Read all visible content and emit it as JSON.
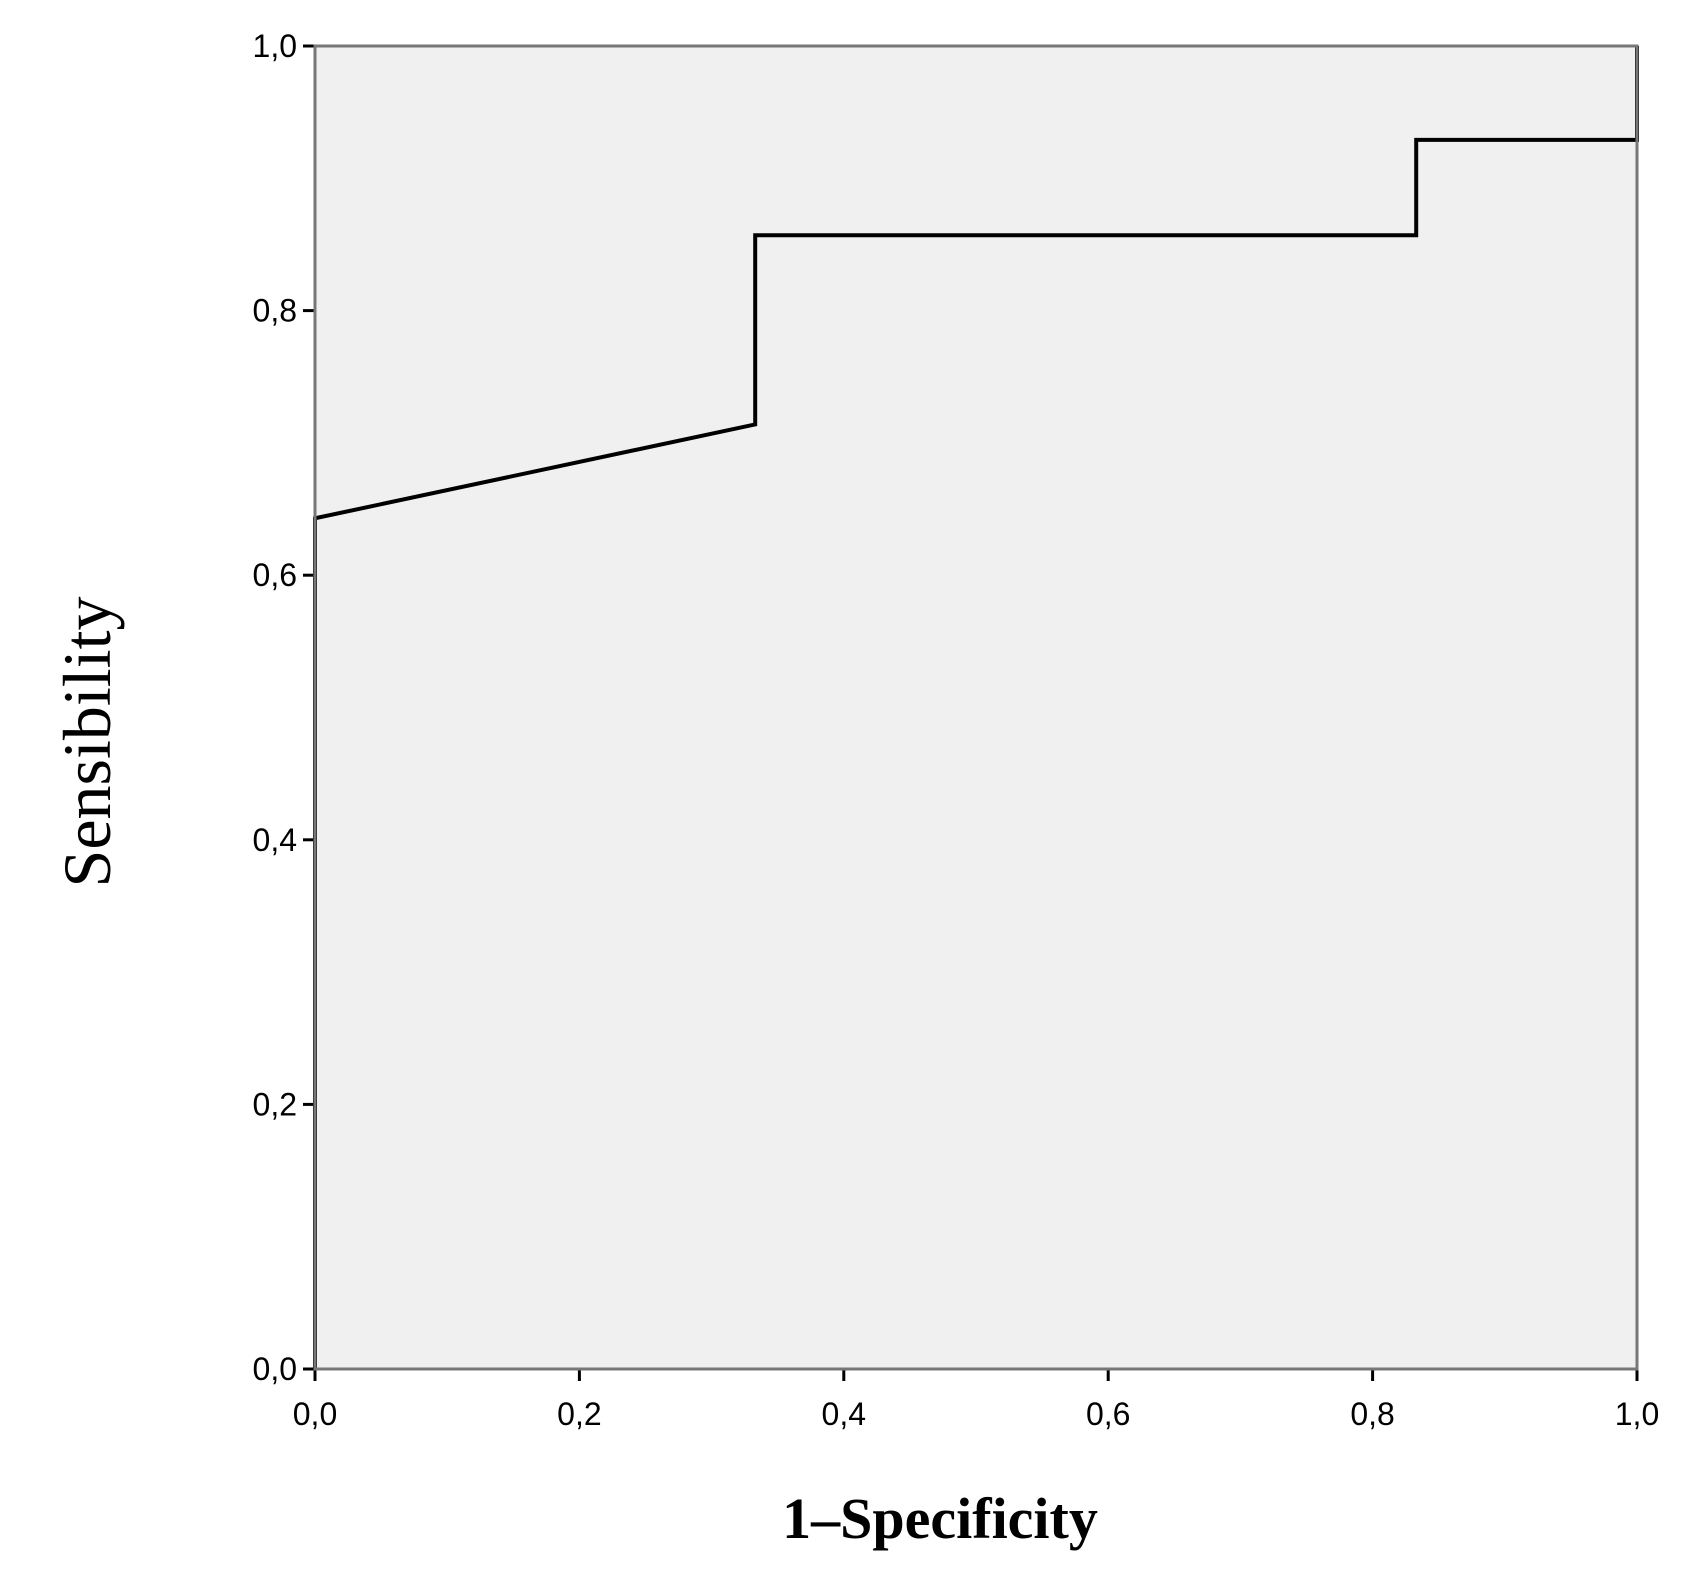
{
  "chart_data": {
    "type": "line",
    "title": "",
    "xlabel": "1–Specificity",
    "ylabel": "Sensibility",
    "xlim": [
      0,
      1
    ],
    "ylim": [
      0,
      1
    ],
    "x_ticks": [
      "0,0",
      "0,2",
      "0,4",
      "0,6",
      "0,8",
      "1,0"
    ],
    "y_ticks": [
      "0,0",
      "0,2",
      "0,4",
      "0,6",
      "0,8",
      "1,0"
    ],
    "grid": false,
    "legend": "none",
    "series": [
      {
        "x": [
          0.0,
          0.0,
          0.333,
          0.333,
          0.833,
          0.833,
          1.0,
          1.0
        ],
        "y": [
          0.0,
          0.643,
          0.714,
          0.857,
          0.857,
          0.929,
          0.929,
          1.0
        ]
      }
    ],
    "colors": {
      "plot_background": "#f0f0f0",
      "line": "#000000",
      "frame": "#777777"
    }
  }
}
